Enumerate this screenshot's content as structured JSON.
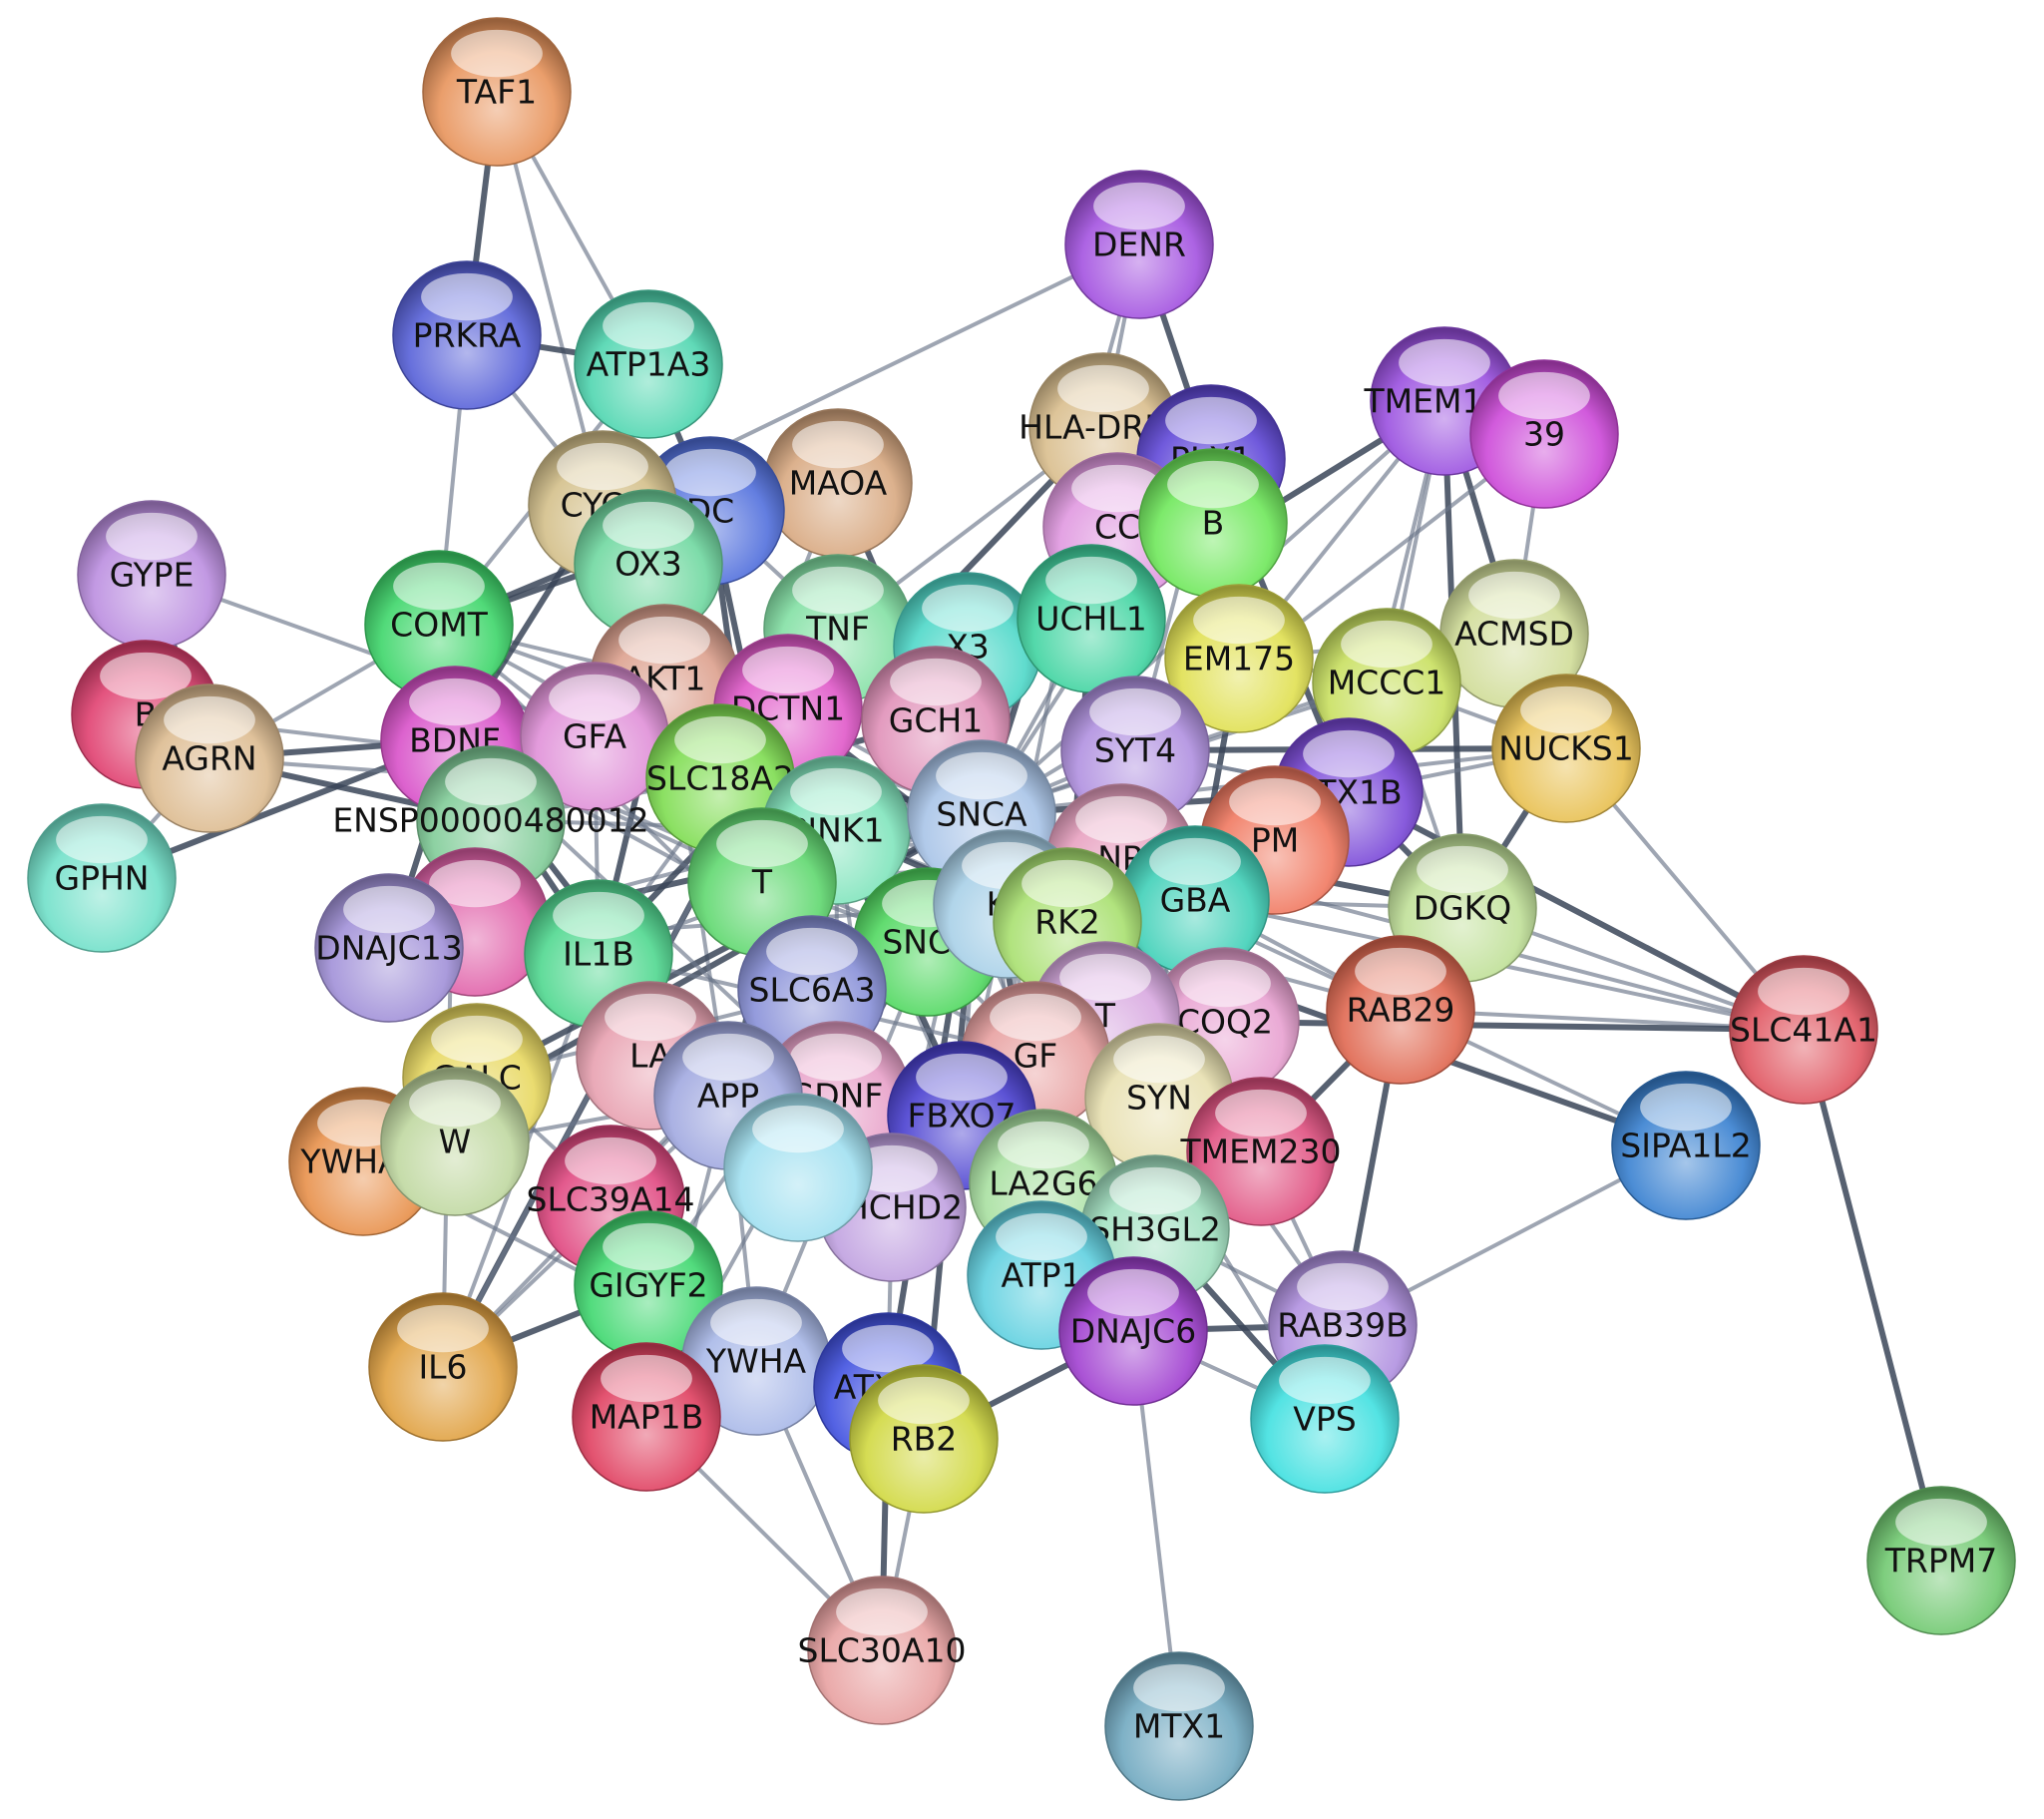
{
  "nodes": [
    {
      "id": "TAF1",
      "label": "TAF1",
      "color": "#e8935a"
    },
    {
      "id": "DENR",
      "label": "DENR",
      "color": "#a352e0"
    },
    {
      "id": "PRKRA",
      "label": "PRKRA",
      "color": "#5660d8"
    },
    {
      "id": "ATP1A3",
      "label": "ATP1A3",
      "color": "#4fd6b0"
    },
    {
      "id": "TMEM163",
      "label": "TMEM163",
      "color": "#9a4fe0"
    },
    {
      "id": "RAB39",
      "label": "39",
      "color": "#cc48d8"
    },
    {
      "id": "HLA-DRB5",
      "label": "HLA-DRB5",
      "color": "#d9bd8c"
    },
    {
      "id": "CPLX1",
      "label": "PLX1",
      "color": "#6048d8"
    },
    {
      "id": "MAOA",
      "label": "MAOA",
      "color": "#d8a880"
    },
    {
      "id": "DDC",
      "label": "DC",
      "color": "#5270dd"
    },
    {
      "id": "CYCS",
      "label": "CYCS",
      "color": "#d4c08a"
    },
    {
      "id": "GYPE",
      "label": "GYPE",
      "color": "#bb8ee0"
    },
    {
      "id": "FOXO3",
      "label": "OX3",
      "color": "#70d8a0"
    },
    {
      "id": "COMT",
      "label": "COMT",
      "color": "#3ed66a"
    },
    {
      "id": "CCNB",
      "label": "CC",
      "color": "#e098e0"
    },
    {
      "id": "SYNJ1B",
      "label": "B",
      "color": "#6ee85a"
    },
    {
      "id": "ACMSD",
      "label": "ACMSD",
      "color": "#d0dc98"
    },
    {
      "id": "TNF",
      "label": "TNF",
      "color": "#82e0a4"
    },
    {
      "id": "STX3",
      "label": "X3",
      "color": "#4ed8c8"
    },
    {
      "id": "UCHL1",
      "label": "UCHL1",
      "color": "#40d4a0"
    },
    {
      "id": "TMEM175",
      "label": "EM175",
      "color": "#e0e050"
    },
    {
      "id": "MCCC1",
      "label": "MCCC1",
      "color": "#c8e060"
    },
    {
      "id": "BAG",
      "label": "B",
      "color": "#e04070"
    },
    {
      "id": "AKT1",
      "label": "AKT1",
      "color": "#dca08e"
    },
    {
      "id": "DCTN1",
      "label": "DCTN1",
      "color": "#e058c8"
    },
    {
      "id": "AGRN",
      "label": "AGRN",
      "color": "#ddbb90"
    },
    {
      "id": "BDNF",
      "label": "BDNF",
      "color": "#d850c8"
    },
    {
      "id": "GFAP",
      "label": "GFA",
      "color": "#e090d8"
    },
    {
      "id": "GCH1",
      "label": "GCH1",
      "color": "#e090b8"
    },
    {
      "id": "SYT4",
      "label": "SYT4",
      "color": "#b090e0"
    },
    {
      "id": "NUCKS1",
      "label": "NUCKS1",
      "color": "#e8c050"
    },
    {
      "id": "SLC18A2",
      "label": "SLC18A2",
      "color": "#7edc50"
    },
    {
      "id": "STX1B",
      "label": "STX1B",
      "color": "#7a48d8"
    },
    {
      "id": "GPHN",
      "label": "GPHN",
      "color": "#70e0c8"
    },
    {
      "id": "ENSP00000480012",
      "label": "ENSP00000480012",
      "color": "#80cc98"
    },
    {
      "id": "PINK1",
      "label": "PINK1",
      "color": "#80e4bc"
    },
    {
      "id": "SNCA",
      "label": "SNCA",
      "color": "#a8c4e8"
    },
    {
      "id": "NR4A2",
      "label": "NR",
      "color": "#e8a0c0"
    },
    {
      "id": "PMS",
      "label": "PM",
      "color": "#f07860"
    },
    {
      "id": "TH",
      "label": "T",
      "color": "#60d870"
    },
    {
      "id": "GBA",
      "label": "GBA",
      "color": "#40d0b8"
    },
    {
      "id": "DGKQ",
      "label": "DGKQ",
      "color": "#c0e098"
    },
    {
      "id": "CHRNA",
      "label": "",
      "color": "#e060a8"
    },
    {
      "id": "DNAJC13",
      "label": "DNAJC13",
      "color": "#a090d8"
    },
    {
      "id": "IL1B",
      "label": "IL1B",
      "color": "#50d890"
    },
    {
      "id": "SNCB",
      "label": "SNCB",
      "color": "#50d860"
    },
    {
      "id": "LRRK2",
      "label": "K2",
      "color": "#a8d0e8"
    },
    {
      "id": "PARK2",
      "label": "RK2",
      "color": "#a8e070"
    },
    {
      "id": "SLC6A3",
      "label": "SLC6A3",
      "color": "#8890d8"
    },
    {
      "id": "RAB29",
      "label": "RAB29",
      "color": "#e06850"
    },
    {
      "id": "SLC41A1",
      "label": "SLC41A1",
      "color": "#e05560"
    },
    {
      "id": "COQ2",
      "label": "COQ2",
      "color": "#e8a0d0"
    },
    {
      "id": "VPS35",
      "label": "T",
      "color": "#d8a8e0"
    },
    {
      "id": "GALC",
      "label": "GALC",
      "color": "#e8d860"
    },
    {
      "id": "LA",
      "label": "LA",
      "color": "#e8a0b0"
    },
    {
      "id": "GDNF",
      "label": "GDNF",
      "color": "#e8a0c8"
    },
    {
      "id": "APP",
      "label": "APP",
      "color": "#a0a8e0"
    },
    {
      "id": "NGF",
      "label": "GF",
      "color": "#e8a0a0"
    },
    {
      "id": "FBXO7",
      "label": "FBXO7",
      "color": "#4a40d0"
    },
    {
      "id": "SYNJ1",
      "label": "SYN",
      "color": "#e8e0b0"
    },
    {
      "id": "TMEM230",
      "label": "TMEM230",
      "color": "#e05080"
    },
    {
      "id": "SIPA1L2",
      "label": "SIPA1L2",
      "color": "#3880d0"
    },
    {
      "id": "YWHAG",
      "label": "YWHAG",
      "color": "#e8904a"
    },
    {
      "id": "YWHAZ2",
      "label": "W",
      "color": "#c0d8a0"
    },
    {
      "id": "SLC39A14",
      "label": "SLC39A14",
      "color": "#e04880"
    },
    {
      "id": "CHCHD2",
      "label": "CHCHD2",
      "color": "#c0a0e0"
    },
    {
      "id": "PLA2G6",
      "label": "LA2G6",
      "color": "#a8e0a0"
    },
    {
      "id": "SH3GL2",
      "label": "SH3GL2",
      "color": "#a0e0c0"
    },
    {
      "id": "GIGYF2",
      "label": "GIGYF2",
      "color": "#40d870"
    },
    {
      "id": "ATP13A2",
      "label": "ATP1",
      "color": "#60d0e0"
    },
    {
      "id": "DNAJC6",
      "label": "DNAJC6",
      "color": "#a040d0"
    },
    {
      "id": "RAB39B",
      "label": "RAB39B",
      "color": "#b090e0"
    },
    {
      "id": "VPS13C",
      "label": "VPS",
      "color": "#40e0e0"
    },
    {
      "id": "IL6",
      "label": "IL6",
      "color": "#e0a040"
    },
    {
      "id": "YWHAB",
      "label": "YWHA",
      "color": "#a8b8e8"
    },
    {
      "id": "MAP1B",
      "label": "MAP1B",
      "color": "#e04060"
    },
    {
      "id": "ATXN2",
      "label": "ATXN2",
      "color": "#4050e0"
    },
    {
      "id": "HTRB2",
      "label": "RB2",
      "color": "#d0d840"
    },
    {
      "id": "TRPM7",
      "label": "TRPM7",
      "color": "#70c870"
    },
    {
      "id": "SLC30A10",
      "label": "SLC30A10",
      "color": "#e8a0a0"
    },
    {
      "id": "MTX1",
      "label": "MTX1",
      "color": "#70a8c0"
    },
    {
      "id": "CDH",
      "label": "",
      "color": "#a0e0f0"
    }
  ],
  "edges": [
    [
      "TAF1",
      "PRKRA"
    ],
    [
      "TAF1",
      "ATP1A3"
    ],
    [
      "TAF1",
      "CYCS"
    ],
    [
      "PRKRA",
      "ATP1A3"
    ],
    [
      "PRKRA",
      "COMT"
    ],
    [
      "PRKRA",
      "CYCS"
    ],
    [
      "ATP1A3",
      "DDC"
    ],
    [
      "ATP1A3",
      "COMT"
    ],
    [
      "DENR",
      "HLA-DRB5"
    ],
    [
      "DENR",
      "CPLX1"
    ],
    [
      "DENR",
      "CYCS"
    ],
    [
      "DENR",
      "SNCA"
    ],
    [
      "TMEM163",
      "ACMSD"
    ],
    [
      "TMEM163",
      "MCCC1"
    ],
    [
      "TMEM163",
      "STX1B"
    ],
    [
      "TMEM163",
      "UCHL1"
    ],
    [
      "TMEM163",
      "TMEM175"
    ],
    [
      "TMEM163",
      "SNCA"
    ],
    [
      "TMEM163",
      "DGKQ"
    ],
    [
      "RAB39",
      "ACMSD"
    ],
    [
      "RAB39",
      "SYT4"
    ],
    [
      "GYPE",
      "AGRN"
    ],
    [
      "GYPE",
      "SLC18A2"
    ],
    [
      "GPHN",
      "AGRN"
    ],
    [
      "GPHN",
      "BDNF"
    ],
    [
      "BAG",
      "AGRN"
    ],
    [
      "BAG",
      "SNCA"
    ],
    [
      "AGRN",
      "BDNF"
    ],
    [
      "AGRN",
      "SNCA"
    ],
    [
      "AGRN",
      "COMT"
    ],
    [
      "AGRN",
      "ENSP00000480012"
    ],
    [
      "NUCKS1",
      "SLC41A1"
    ],
    [
      "NUCKS1",
      "SNCA"
    ],
    [
      "NUCKS1",
      "RAB29"
    ],
    [
      "NUCKS1",
      "STX1B"
    ],
    [
      "NUCKS1",
      "MCCC1"
    ],
    [
      "SLC41A1",
      "TRPM7"
    ],
    [
      "SLC41A1",
      "RAB29"
    ],
    [
      "SLC41A1",
      "DGKQ"
    ],
    [
      "SLC41A1",
      "STX1B"
    ],
    [
      "SLC41A1",
      "SNCA"
    ],
    [
      "SLC41A1",
      "GBA"
    ],
    [
      "SLC41A1",
      "COQ2"
    ],
    [
      "SIPA1L2",
      "RAB39B"
    ],
    [
      "SIPA1L2",
      "RAB29"
    ],
    [
      "SIPA1L2",
      "LRRK2"
    ],
    [
      "MTX1",
      "DNAJC6"
    ],
    [
      "SLC30A10",
      "YWHAB"
    ],
    [
      "SLC30A10",
      "ATXN2"
    ],
    [
      "SLC30A10",
      "HTRB2"
    ],
    [
      "SLC30A10",
      "MAP1B"
    ],
    [
      "RAB29",
      "VPS13C"
    ],
    [
      "RAB29",
      "LRRK2"
    ],
    [
      "RAB29",
      "GBA"
    ],
    [
      "RAB29",
      "TMEM230"
    ],
    [
      "RAB29",
      "SNCA"
    ],
    [
      "RAB39B",
      "SNCA"
    ],
    [
      "RAB39B",
      "DNAJC6"
    ],
    [
      "RAB39B",
      "SH3GL2"
    ],
    [
      "RAB39B",
      "TMEM230"
    ],
    [
      "IL6",
      "GIGYF2"
    ],
    [
      "IL6",
      "SNCA"
    ],
    [
      "IL6",
      "IL1B"
    ],
    [
      "IL6",
      "TNF"
    ],
    [
      "IL6",
      "BDNF"
    ],
    [
      "IL6",
      "APP"
    ],
    [
      "YWHAG",
      "SNCA"
    ],
    [
      "YWHAG",
      "GALC"
    ],
    [
      "YWHAG",
      "APP"
    ],
    [
      "DNAJC13",
      "SNCA"
    ],
    [
      "DNAJC13",
      "LRRK2"
    ],
    [
      "DNAJC13",
      "PINK1"
    ],
    [
      "DNAJC13",
      "BDNF"
    ],
    [
      "COMT",
      "SNCA"
    ],
    [
      "COMT",
      "TH"
    ],
    [
      "COMT",
      "MAOA"
    ],
    [
      "COMT",
      "SLC6A3"
    ],
    [
      "COMT",
      "BDNF"
    ],
    [
      "COMT",
      "DDC"
    ],
    [
      "COMT",
      "AKT1"
    ],
    [
      "COMT",
      "SLC18A2"
    ],
    [
      "MAOA",
      "SNCA"
    ],
    [
      "MAOA",
      "TH"
    ],
    [
      "MAOA",
      "SLC6A3"
    ],
    [
      "MAOA",
      "DDC"
    ],
    [
      "MAOA",
      "SLC18A2"
    ],
    [
      "MAOA",
      "CYCS"
    ],
    [
      "HLA-DRB5",
      "SNCA"
    ],
    [
      "HLA-DRB5",
      "TNF"
    ],
    [
      "HLA-DRB5",
      "LRRK2"
    ],
    [
      "HLA-DRB5",
      "IL1B"
    ],
    [
      "CPLX1",
      "SNCA"
    ],
    [
      "CPLX1",
      "SYT4"
    ],
    [
      "CPLX1",
      "STX1B"
    ],
    [
      "CPLX1",
      "UCHL1"
    ],
    [
      "TNF",
      "IL1B"
    ],
    [
      "TNF",
      "AKT1"
    ],
    [
      "TNF",
      "IL6"
    ],
    [
      "TNF",
      "BDNF"
    ],
    [
      "TNF",
      "SNCA"
    ],
    [
      "TNF",
      "GDNF"
    ],
    [
      "TNF",
      "NGF"
    ],
    [
      "TNF",
      "APP"
    ],
    [
      "AKT1",
      "BDNF"
    ],
    [
      "AKT1",
      "PINK1"
    ],
    [
      "AKT1",
      "GDNF"
    ],
    [
      "AKT1",
      "NGF"
    ],
    [
      "AKT1",
      "SNCA"
    ],
    [
      "AKT1",
      "CYCS"
    ],
    [
      "AKT1",
      "FOXO3"
    ],
    [
      "AKT1",
      "APP"
    ],
    [
      "AKT1",
      "IL1B"
    ],
    [
      "SNCA",
      "PINK1"
    ],
    [
      "SNCA",
      "LRRK2"
    ],
    [
      "SNCA",
      "PARK2"
    ],
    [
      "SNCA",
      "GBA"
    ],
    [
      "SNCA",
      "UCHL1"
    ],
    [
      "SNCA",
      "TH"
    ],
    [
      "SNCA",
      "SLC6A3"
    ],
    [
      "SNCA",
      "SNCB"
    ],
    [
      "SNCA",
      "APP"
    ],
    [
      "SNCA",
      "FBXO7"
    ],
    [
      "SNCA",
      "SYT4"
    ],
    [
      "SNCA",
      "STX1B"
    ],
    [
      "SNCA",
      "GCH1"
    ],
    [
      "SNCA",
      "NR4A2"
    ],
    [
      "SNCA",
      "VPS35"
    ],
    [
      "SNCA",
      "COQ2"
    ],
    [
      "SNCA",
      "SYNJ1"
    ],
    [
      "SNCA",
      "DNAJC6"
    ],
    [
      "SNCA",
      "SH3GL2"
    ],
    [
      "SNCA",
      "ATP13A2"
    ],
    [
      "SNCA",
      "PLA2G6"
    ],
    [
      "SNCA",
      "CHCHD2"
    ],
    [
      "SNCA",
      "GIGYF2"
    ],
    [
      "SNCA",
      "ATXN2"
    ],
    [
      "SNCA",
      "MAP1B"
    ],
    [
      "SNCA",
      "YWHAB"
    ],
    [
      "SNCA",
      "HTRB2"
    ],
    [
      "SNCA",
      "SLC39A14"
    ],
    [
      "SNCA",
      "TMEM230"
    ],
    [
      "SNCA",
      "DGKQ"
    ],
    [
      "SNCA",
      "MCCC1"
    ],
    [
      "SNCA",
      "TMEM175"
    ],
    [
      "SNCA",
      "GDNF"
    ],
    [
      "SNCA",
      "NGF"
    ],
    [
      "SNCA",
      "BDNF"
    ],
    [
      "SNCA",
      "GALC"
    ],
    [
      "SNCA",
      "IL1B"
    ],
    [
      "PINK1",
      "PARK2"
    ],
    [
      "PINK1",
      "LRRK2"
    ],
    [
      "PINK1",
      "FBXO7"
    ],
    [
      "PINK1",
      "CHCHD2"
    ],
    [
      "PINK1",
      "ATP13A2"
    ],
    [
      "PINK1",
      "GBA"
    ],
    [
      "PINK1",
      "UCHL1"
    ],
    [
      "PINK1",
      "TH"
    ],
    [
      "PINK1",
      "SLC6A3"
    ],
    [
      "PINK1",
      "DCTN1"
    ],
    [
      "LRRK2",
      "PARK2"
    ],
    [
      "LRRK2",
      "VPS35"
    ],
    [
      "LRRK2",
      "GBA"
    ],
    [
      "LRRK2",
      "DNAJC6"
    ],
    [
      "LRRK2",
      "SH3GL2"
    ],
    [
      "LRRK2",
      "FBXO7"
    ],
    [
      "LRRK2",
      "TMEM230"
    ],
    [
      "LRRK2",
      "VPS13C"
    ],
    [
      "LRRK2",
      "COQ2"
    ],
    [
      "LRRK2",
      "SYNJ1"
    ],
    [
      "LRRK2",
      "ATP13A2"
    ],
    [
      "PARK2",
      "FBXO7"
    ],
    [
      "PARK2",
      "UCHL1"
    ],
    [
      "PARK2",
      "GBA"
    ],
    [
      "PARK2",
      "COQ2"
    ],
    [
      "TH",
      "DDC"
    ],
    [
      "TH",
      "GCH1"
    ],
    [
      "TH",
      "SLC6A3"
    ],
    [
      "TH",
      "SLC18A2"
    ],
    [
      "TH",
      "NR4A2"
    ],
    [
      "TH",
      "BDNF"
    ],
    [
      "TH",
      "GDNF"
    ],
    [
      "TH",
      "SNCB"
    ],
    [
      "SLC6A3",
      "SLC18A2"
    ],
    [
      "SLC6A3",
      "DDC"
    ],
    [
      "SLC6A3",
      "NR4A2"
    ],
    [
      "SLC6A3",
      "GDNF"
    ],
    [
      "SLC6A3",
      "APP"
    ],
    [
      "GBA",
      "GALC"
    ],
    [
      "GBA",
      "COQ2"
    ],
    [
      "GBA",
      "VPS35"
    ],
    [
      "GBA",
      "ATP13A2"
    ],
    [
      "GBA",
      "DGKQ"
    ],
    [
      "GBA",
      "TMEM175"
    ],
    [
      "BDNF",
      "GDNF"
    ],
    [
      "BDNF",
      "NGF"
    ],
    [
      "BDNF",
      "APP"
    ],
    [
      "BDNF",
      "SNCB"
    ],
    [
      "BDNF",
      "ENSP00000480012"
    ],
    [
      "BDNF",
      "CHRNA"
    ],
    [
      "APP",
      "IL1B"
    ],
    [
      "APP",
      "GDNF"
    ],
    [
      "APP",
      "NGF"
    ],
    [
      "APP",
      "YWHAB"
    ],
    [
      "APP",
      "MAP1B"
    ],
    [
      "APP",
      "CHCHD2"
    ],
    [
      "SYT4",
      "STX1B"
    ],
    [
      "SYT4",
      "UCHL1"
    ],
    [
      "SYT4",
      "SH3GL2"
    ],
    [
      "SYT4",
      "DNAJC6"
    ],
    [
      "SYNJ1",
      "DNAJC6"
    ],
    [
      "SYNJ1",
      "SH3GL2"
    ],
    [
      "SYNJ1",
      "VPS35"
    ],
    [
      "SH3GL2",
      "DNAJC6"
    ],
    [
      "SH3GL2",
      "VPS13C"
    ],
    [
      "DNAJC6",
      "VPS13C"
    ],
    [
      "DNAJC6",
      "ATP13A2"
    ],
    [
      "DNAJC6",
      "HTRB2"
    ],
    [
      "YWHAB",
      "YWHAG"
    ],
    [
      "YWHAB",
      "ATXN2"
    ],
    [
      "YWHAB",
      "MAP1B"
    ],
    [
      "GIGYF2",
      "ATXN2"
    ],
    [
      "GIGYF2",
      "MAP1B"
    ],
    [
      "GIGYF2",
      "SLC39A14"
    ],
    [
      "IL1B",
      "GDNF"
    ],
    [
      "IL1B",
      "NGF"
    ],
    [
      "IL1B",
      "BDNF"
    ],
    [
      "CYCS",
      "PINK1"
    ],
    [
      "CYCS",
      "FOXO3"
    ],
    [
      "CYCS",
      "BDNF"
    ],
    [
      "GALC",
      "SLC39A14"
    ],
    [
      "GALC",
      "YWHAZ2"
    ],
    [
      "DGKQ",
      "STX1B"
    ],
    [
      "DGKQ",
      "MCCC1"
    ],
    [
      "MCCC1",
      "TMEM175"
    ],
    [
      "MCCC1",
      "STX1B"
    ],
    [
      "STX1B",
      "SYT4"
    ],
    [
      "ACMSD",
      "SNCA"
    ],
    [
      "ACMSD",
      "MCCC1"
    ],
    [
      "ACMSD",
      "STX1B"
    ],
    [
      "ACMSD",
      "TMEM175"
    ],
    [
      "NUCKS1",
      "SYT4"
    ],
    [
      "ENSP00000480012",
      "PINK1"
    ],
    [
      "ENSP00000480012",
      "SLC18A2"
    ],
    [
      "GFAP",
      "SNCA"
    ],
    [
      "GFAP",
      "IL1B"
    ],
    [
      "GFAP",
      "TNF"
    ],
    [
      "GCH1",
      "SLC18A2"
    ],
    [
      "GCH1",
      "DDC"
    ],
    [
      "DCTN1",
      "SNCA"
    ],
    [
      "DCTN1",
      "PARK2"
    ],
    [
      "CDH",
      "SNCA"
    ],
    [
      "CDH",
      "APP"
    ],
    [
      "TMEM230",
      "SNCA"
    ],
    [
      "TMEM230",
      "VPS35"
    ],
    [
      "FBXO7",
      "CHCHD2"
    ],
    [
      "FBXO7",
      "PLA2G6"
    ],
    [
      "PLA2G6",
      "ATP13A2"
    ],
    [
      "CHCHD2",
      "ATXN2"
    ],
    [
      "ATXN2",
      "MAP1B"
    ],
    [
      "ATXN2",
      "HTRB2"
    ],
    [
      "HTRB2",
      "YWHAB"
    ]
  ]
}
